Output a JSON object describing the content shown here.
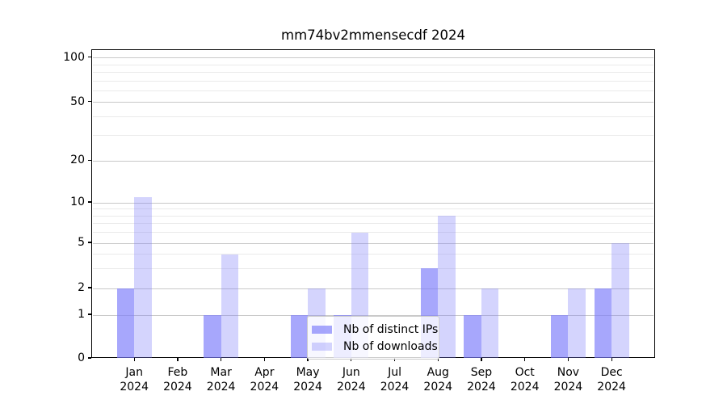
{
  "title": "mm74bv2mmensecdf 2024",
  "colors": {
    "bar_ips": "rgba(124,124,250,0.67)",
    "bar_downloads": "rgba(124,124,250,0.33)",
    "grid_major": "#c8c8c8",
    "grid_minor": "#eaeaea",
    "axis_line": "#000000",
    "text": "#000000",
    "legend_border": "#cccccc"
  },
  "legend": {
    "items": [
      {
        "label": "Nb of distinct IPs",
        "series": "ips"
      },
      {
        "label": "Nb of downloads",
        "series": "downloads"
      }
    ]
  },
  "y_axis": {
    "major_ticks": [
      0,
      1,
      2,
      5,
      10,
      20,
      50,
      100
    ],
    "minor_gridline_values": [
      3,
      4,
      6,
      7,
      8,
      9,
      30,
      40,
      60,
      70,
      80,
      90
    ],
    "scale": "symlog"
  },
  "x_axis": {
    "year_line": "2024",
    "months": [
      "Jan",
      "Feb",
      "Mar",
      "Apr",
      "May",
      "Jun",
      "Jul",
      "Aug",
      "Sep",
      "Oct",
      "Nov",
      "Dec"
    ]
  },
  "chart_data": {
    "type": "bar",
    "title": "mm74bv2mmensecdf 2024",
    "categories": [
      "Jan 2024",
      "Feb 2024",
      "Mar 2024",
      "Apr 2024",
      "May 2024",
      "Jun 2024",
      "Jul 2024",
      "Aug 2024",
      "Sep 2024",
      "Oct 2024",
      "Nov 2024",
      "Dec 2024"
    ],
    "series": [
      {
        "name": "Nb of distinct IPs",
        "values": [
          2,
          0,
          1,
          0,
          1,
          1,
          0,
          3,
          1,
          0,
          1,
          2
        ]
      },
      {
        "name": "Nb of downloads",
        "values": [
          11,
          0,
          4,
          0,
          2,
          6,
          0,
          8,
          2,
          0,
          2,
          5
        ]
      }
    ],
    "xlabel": "",
    "ylabel": "",
    "ylim": [
      0,
      113
    ],
    "yticks": [
      0,
      1,
      2,
      5,
      10,
      20,
      50,
      100
    ],
    "grid": true,
    "legend_position": "lower center"
  }
}
